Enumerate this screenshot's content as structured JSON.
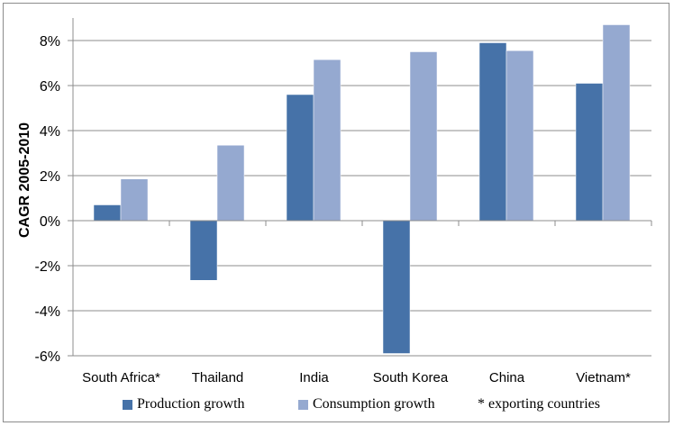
{
  "chart_data": {
    "type": "bar",
    "title": "",
    "xlabel": "",
    "ylabel": "CAGR 2005-2010",
    "ylim": [
      -6,
      9
    ],
    "yticks": [
      -6,
      -4,
      -2,
      0,
      2,
      4,
      6,
      8
    ],
    "ytick_labels": [
      "-6%",
      "-4%",
      "-2%",
      "0%",
      "2%",
      "4%",
      "6%",
      "8%"
    ],
    "grid": true,
    "legend_position": "bottom",
    "categories": [
      "South Africa*",
      "Thailand",
      "India",
      "South Korea",
      "China",
      "Vietnam*"
    ],
    "series": [
      {
        "name": "Production growth",
        "color": "#4672a8",
        "values": [
          0.7,
          -2.65,
          5.6,
          -5.9,
          7.9,
          6.1
        ]
      },
      {
        "name": "Consumption growth",
        "color": "#95a9d0",
        "values": [
          1.85,
          3.35,
          7.15,
          7.5,
          7.55,
          8.7
        ]
      }
    ],
    "annotation": "* exporting countries"
  }
}
